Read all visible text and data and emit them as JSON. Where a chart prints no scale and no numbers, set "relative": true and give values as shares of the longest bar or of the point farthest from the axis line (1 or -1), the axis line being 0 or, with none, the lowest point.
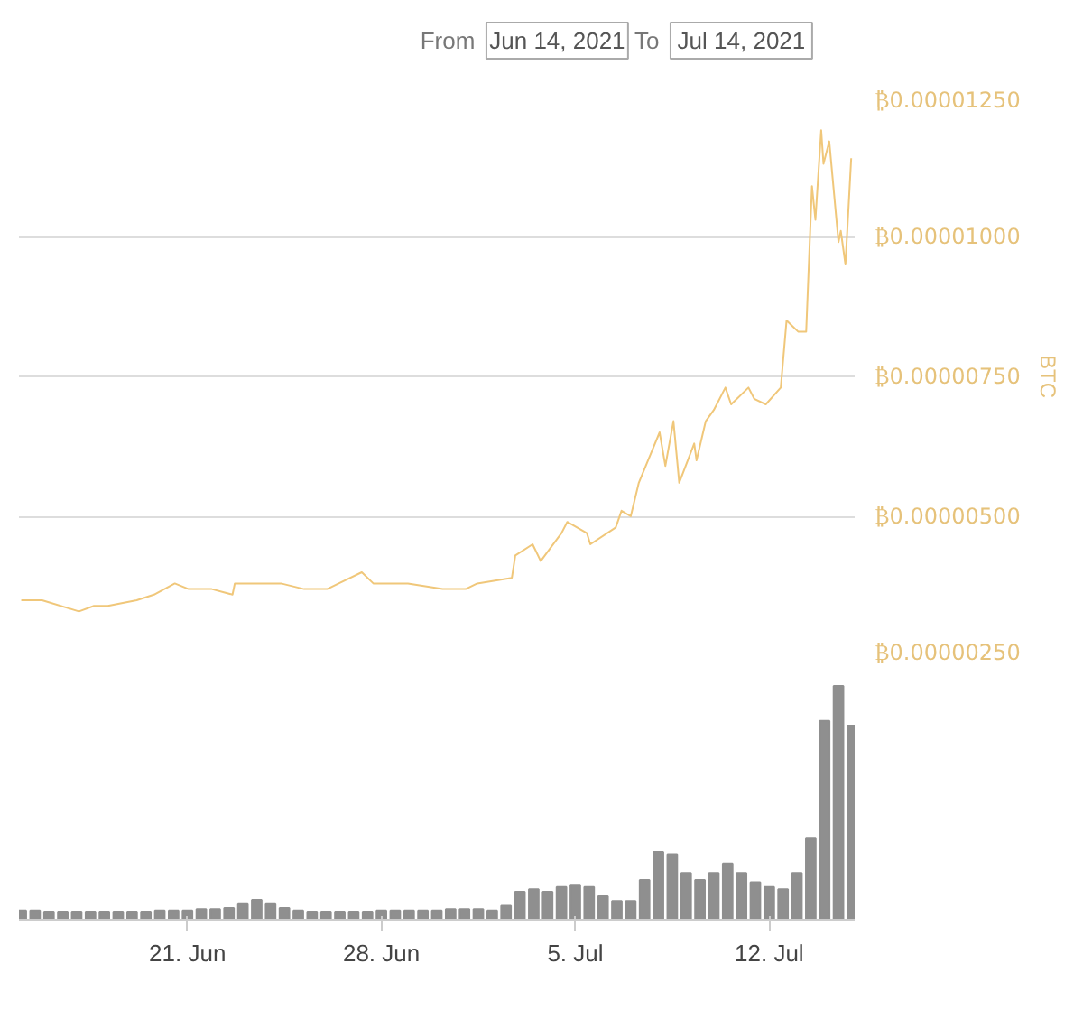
{
  "chart_data": [
    {
      "type": "line",
      "annotations": [
        "From",
        "Jun 14, 2021",
        "To",
        "Jul 14, 2021"
      ],
      "ylabel": "BTC",
      "color": "#f0c77a",
      "grid": "y",
      "tick_labels": "y",
      "xlim": [
        "2021-06-14T22:00",
        "2021-07-15T02:00"
      ],
      "ylim": [
        2.5e-06,
        1.25e-05
      ],
      "yticks": [
        {
          "value": 2.5e-06,
          "label": "₿0.00000250"
        },
        {
          "value": 5e-06,
          "label": "₿0.00000500"
        },
        {
          "value": 7.5e-06,
          "label": "₿0.00000750"
        },
        {
          "value": 1e-05,
          "label": "₿0.00001000"
        },
        {
          "value": 1.25e-05,
          "label": "₿0.00001250"
        }
      ],
      "x": [
        "2021-06-15T00:00",
        "2021-06-15T18:00",
        "2021-06-17T02:00",
        "2021-06-17T15:00",
        "2021-06-18T03:00",
        "2021-06-19T04:00",
        "2021-06-19T19:00",
        "2021-06-20T13:00",
        "2021-06-21T01:00",
        "2021-06-21T21:00",
        "2021-06-22T15:00",
        "2021-06-22T17:00",
        "2021-06-23T08:00",
        "2021-06-23T23:00",
        "2021-06-24T09:00",
        "2021-06-25T05:00",
        "2021-06-26T01:00",
        "2021-06-26T11:00",
        "2021-06-27T07:00",
        "2021-06-27T17:00",
        "2021-06-28T23:00",
        "2021-06-30T05:00",
        "2021-07-01T01:00",
        "2021-07-01T11:00",
        "2021-07-02T17:00",
        "2021-07-02T20:00",
        "2021-07-03T11:00",
        "2021-07-03T18:00",
        "2021-07-04T12:00",
        "2021-07-04T17:00",
        "2021-07-05T10:00",
        "2021-07-05T13:00",
        "2021-07-06T11:00",
        "2021-07-06T16:00",
        "2021-07-07T00:00",
        "2021-07-07T07:00",
        "2021-07-07T17:00",
        "2021-07-08T01:00",
        "2021-07-08T06:00",
        "2021-07-08T13:00",
        "2021-07-08T18:00",
        "2021-07-09T07:00",
        "2021-07-09T09:00",
        "2021-07-09T17:00",
        "2021-07-10T00:00",
        "2021-07-10T10:00",
        "2021-07-10T15:00",
        "2021-07-11T06:00",
        "2021-07-11T11:00",
        "2021-07-11T21:00",
        "2021-07-12T10:00",
        "2021-07-12T15:00",
        "2021-07-12T20:00",
        "2021-07-13T01:00",
        "2021-07-13T08:00",
        "2021-07-13T13:00",
        "2021-07-13T16:00",
        "2021-07-13T21:00",
        "2021-07-13T23:00",
        "2021-07-14T04:00",
        "2021-07-14T12:00",
        "2021-07-14T14:00",
        "2021-07-14T18:00",
        "2021-07-14T23:00"
      ],
      "values": [
        3.5e-06,
        3.5e-06,
        3.3e-06,
        3.4e-06,
        3.4e-06,
        3.5e-06,
        3.6e-06,
        3.8e-06,
        3.7e-06,
        3.7e-06,
        3.6e-06,
        3.8e-06,
        3.8e-06,
        3.8e-06,
        3.8e-06,
        3.7e-06,
        3.7e-06,
        3.8e-06,
        4e-06,
        3.8e-06,
        3.8e-06,
        3.7e-06,
        3.7e-06,
        3.8e-06,
        3.9e-06,
        4.3e-06,
        4.5e-06,
        4.2e-06,
        4.7e-06,
        4.9e-06,
        4.7e-06,
        4.5e-06,
        4.8e-06,
        5.1e-06,
        5e-06,
        5.6e-06,
        6.1e-06,
        6.5e-06,
        5.9e-06,
        6.7e-06,
        5.6e-06,
        6.3e-06,
        6e-06,
        6.7e-06,
        6.9e-06,
        7.3e-06,
        7e-06,
        7.3e-06,
        7.1e-06,
        7e-06,
        7.3e-06,
        8.5e-06,
        8.4e-06,
        8.3e-06,
        8.3e-06,
        1.09e-05,
        1.03e-05,
        1.19e-05,
        1.13e-05,
        1.17e-05,
        9.9e-06,
        1.01e-05,
        9.5e-06,
        1.14e-05
      ]
    },
    {
      "type": "bar",
      "relative": true,
      "color": "#8f8f8f",
      "tick_labels": "x",
      "xlim": [
        "2021-06-14T22:00",
        "2021-07-15T02:00"
      ],
      "xticks": [
        {
          "value": "2021-06-21",
          "label": "21. Jun"
        },
        {
          "value": "2021-06-28",
          "label": "28. Jun"
        },
        {
          "value": "2021-07-05",
          "label": "5. Jul"
        },
        {
          "value": "2021-07-12",
          "label": "12. Jul"
        }
      ],
      "x": [
        "2021-06-15T00:00",
        "2021-06-15T12:00",
        "2021-06-16T00:00",
        "2021-06-16T12:00",
        "2021-06-17T00:00",
        "2021-06-17T12:00",
        "2021-06-18T00:00",
        "2021-06-18T12:00",
        "2021-06-19T00:00",
        "2021-06-19T12:00",
        "2021-06-20T00:00",
        "2021-06-20T12:00",
        "2021-06-21T00:00",
        "2021-06-21T12:00",
        "2021-06-22T00:00",
        "2021-06-22T12:00",
        "2021-06-23T00:00",
        "2021-06-23T12:00",
        "2021-06-24T00:00",
        "2021-06-24T12:00",
        "2021-06-25T00:00",
        "2021-06-25T12:00",
        "2021-06-26T00:00",
        "2021-06-26T12:00",
        "2021-06-27T00:00",
        "2021-06-27T12:00",
        "2021-06-28T00:00",
        "2021-06-28T12:00",
        "2021-06-29T00:00",
        "2021-06-29T12:00",
        "2021-06-30T00:00",
        "2021-06-30T12:00",
        "2021-07-01T00:00",
        "2021-07-01T12:00",
        "2021-07-02T00:00",
        "2021-07-02T12:00",
        "2021-07-03T00:00",
        "2021-07-03T12:00",
        "2021-07-04T00:00",
        "2021-07-04T12:00",
        "2021-07-05T00:00",
        "2021-07-05T12:00",
        "2021-07-06T00:00",
        "2021-07-06T12:00",
        "2021-07-07T00:00",
        "2021-07-07T12:00",
        "2021-07-08T00:00",
        "2021-07-08T12:00",
        "2021-07-09T00:00",
        "2021-07-09T12:00",
        "2021-07-10T00:00",
        "2021-07-10T12:00",
        "2021-07-11T00:00",
        "2021-07-11T12:00",
        "2021-07-12T00:00",
        "2021-07-12T12:00",
        "2021-07-13T00:00",
        "2021-07-13T12:00",
        "2021-07-14T00:00",
        "2021-07-14T12:00",
        "2021-07-15T00:00"
      ],
      "values": [
        0.04,
        0.04,
        0.035,
        0.035,
        0.035,
        0.035,
        0.035,
        0.035,
        0.035,
        0.035,
        0.04,
        0.04,
        0.04,
        0.045,
        0.045,
        0.05,
        0.07,
        0.085,
        0.07,
        0.05,
        0.04,
        0.035,
        0.035,
        0.035,
        0.035,
        0.035,
        0.04,
        0.04,
        0.04,
        0.04,
        0.04,
        0.045,
        0.045,
        0.045,
        0.04,
        0.06,
        0.12,
        0.13,
        0.12,
        0.14,
        0.15,
        0.14,
        0.1,
        0.08,
        0.08,
        0.17,
        0.29,
        0.28,
        0.2,
        0.17,
        0.2,
        0.24,
        0.2,
        0.16,
        0.14,
        0.13,
        0.2,
        0.35,
        0.85,
        1,
        0.83
      ]
    }
  ]
}
